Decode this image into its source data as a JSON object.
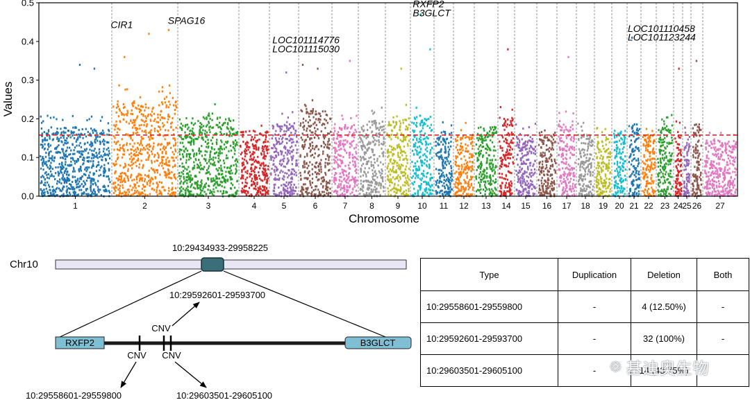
{
  "chart_data": {
    "type": "scatter",
    "subtype": "manhattan",
    "xlabel": "Chromosome",
    "ylabel": "Values",
    "ylim": [
      0,
      0.5
    ],
    "yticks": [
      "0.0",
      "0.1",
      "0.2",
      "0.3",
      "0.4",
      "0.5"
    ],
    "threshold": 0.158,
    "threshold_color": "#d62728",
    "chromosomes": [
      {
        "label": "1",
        "color": "#1f77b4",
        "max": 0.21
      },
      {
        "label": "2",
        "color": "#ff7f0e",
        "max": 0.29
      },
      {
        "label": "3",
        "color": "#2ca02c",
        "max": 0.24
      },
      {
        "label": "4",
        "color": "#d62728",
        "max": 0.2
      },
      {
        "label": "5",
        "color": "#9467bd",
        "max": 0.22
      },
      {
        "label": "6",
        "color": "#8c564b",
        "max": 0.26
      },
      {
        "label": "7",
        "color": "#e377c2",
        "max": 0.22
      },
      {
        "label": "8",
        "color": "#999999",
        "max": 0.23
      },
      {
        "label": "9",
        "color": "#bcbd22",
        "max": 0.24
      },
      {
        "label": "10",
        "color": "#17becf",
        "max": 0.25
      },
      {
        "label": "11",
        "color": "#1f77b4",
        "max": 0.2
      },
      {
        "label": "12",
        "color": "#ff7f0e",
        "max": 0.19
      },
      {
        "label": "13",
        "color": "#2ca02c",
        "max": 0.21
      },
      {
        "label": "14",
        "color": "#d62728",
        "max": 0.24
      },
      {
        "label": "15",
        "color": "#9467bd",
        "max": 0.19
      },
      {
        "label": "16",
        "color": "#8c564b",
        "max": 0.2
      },
      {
        "label": "17",
        "color": "#e377c2",
        "max": 0.22
      },
      {
        "label": "18",
        "color": "#999999",
        "max": 0.19
      },
      {
        "label": "19",
        "color": "#bcbd22",
        "max": 0.18
      },
      {
        "label": "20",
        "color": "#17becf",
        "max": 0.2
      },
      {
        "label": "21",
        "color": "#1f77b4",
        "max": 0.22
      },
      {
        "label": "22",
        "color": "#ff7f0e",
        "max": 0.19
      },
      {
        "label": "23",
        "color": "#2ca02c",
        "max": 0.22
      },
      {
        "label": "24",
        "color": "#d62728",
        "max": 0.2
      },
      {
        "label": "25",
        "color": "#9467bd",
        "max": 0.19
      },
      {
        "label": "26",
        "color": "#8c564b",
        "max": 0.22
      },
      {
        "label": "27",
        "color": "#e377c2",
        "max": 0.17
      }
    ],
    "highlights": [
      {
        "chrom": "1",
        "pos": 0.55,
        "value": 0.34
      },
      {
        "chrom": "1",
        "pos": 0.75,
        "value": 0.33
      },
      {
        "chrom": "2",
        "pos": 0.18,
        "value": 0.36
      },
      {
        "chrom": "2",
        "pos": 0.55,
        "value": 0.42
      },
      {
        "chrom": "2",
        "pos": 0.85,
        "value": 0.43
      },
      {
        "chrom": "5",
        "pos": 0.55,
        "value": 0.32
      },
      {
        "chrom": "6",
        "pos": 0.1,
        "value": 0.34
      },
      {
        "chrom": "6",
        "pos": 0.55,
        "value": 0.33
      },
      {
        "chrom": "7",
        "pos": 0.65,
        "value": 0.35
      },
      {
        "chrom": "9",
        "pos": 0.6,
        "value": 0.33
      },
      {
        "chrom": "10",
        "pos": 0.8,
        "value": 0.38
      },
      {
        "chrom": "10",
        "pos": 0.4,
        "value": 0.47
      },
      {
        "chrom": "14",
        "pos": 0.55,
        "value": 0.38
      },
      {
        "chrom": "17",
        "pos": 0.55,
        "value": 0.36
      },
      {
        "chrom": "21",
        "pos": 0.3,
        "value": 0.41
      },
      {
        "chrom": "24",
        "pos": 0.5,
        "value": 0.33
      },
      {
        "chrom": "26",
        "pos": 0.4,
        "value": 0.35
      }
    ],
    "annotations": [
      {
        "text": "CIR1",
        "chrom": "2",
        "pos": 0.15,
        "value": 0.435
      },
      {
        "text": "SPAG16",
        "chrom": "2",
        "pos": 0.85,
        "value": 0.445
      },
      {
        "text": "LOC101114776",
        "chrom": "5",
        "pos": 0.1,
        "value": 0.395
      },
      {
        "text": "LOC101115030",
        "chrom": "5",
        "pos": 0.1,
        "value": 0.372
      },
      {
        "text": "RXFP2",
        "chrom": "10",
        "pos": 0.1,
        "value": 0.488
      },
      {
        "text": "B3GLCT",
        "chrom": "10",
        "pos": 0.1,
        "value": 0.465
      },
      {
        "text": "LOC101110458",
        "chrom": "21",
        "pos": 0.05,
        "value": 0.425
      },
      {
        "text": "LOC101123244",
        "chrom": "21",
        "pos": 0.05,
        "value": 0.402
      }
    ]
  },
  "diagram": {
    "chromosome_label": "Chr10",
    "region_label": "10:29434933-29958225",
    "gene_left": "RXFP2",
    "gene_right": "B3GLCT",
    "cnv_label": "CNV",
    "arrow_labels": {
      "up": "10:29592601-29593700",
      "down_left": "10:29558601-29559800",
      "down_right": "10:29603501-29605100"
    }
  },
  "table": {
    "headers": [
      "Type",
      "Duplication",
      "Deletion",
      "Both"
    ],
    "rows": [
      [
        "10:29558601-29559800",
        "-",
        "4 (12.50%)",
        "-"
      ],
      [
        "10:29592601-29593700",
        "-",
        "32 (100%)",
        "-"
      ],
      [
        "10:29603501-29605100",
        "-",
        "14 (43.75%)",
        ""
      ]
    ]
  },
  "watermark": {
    "icon": "wechat-icon",
    "text": "基迪奥生物"
  }
}
